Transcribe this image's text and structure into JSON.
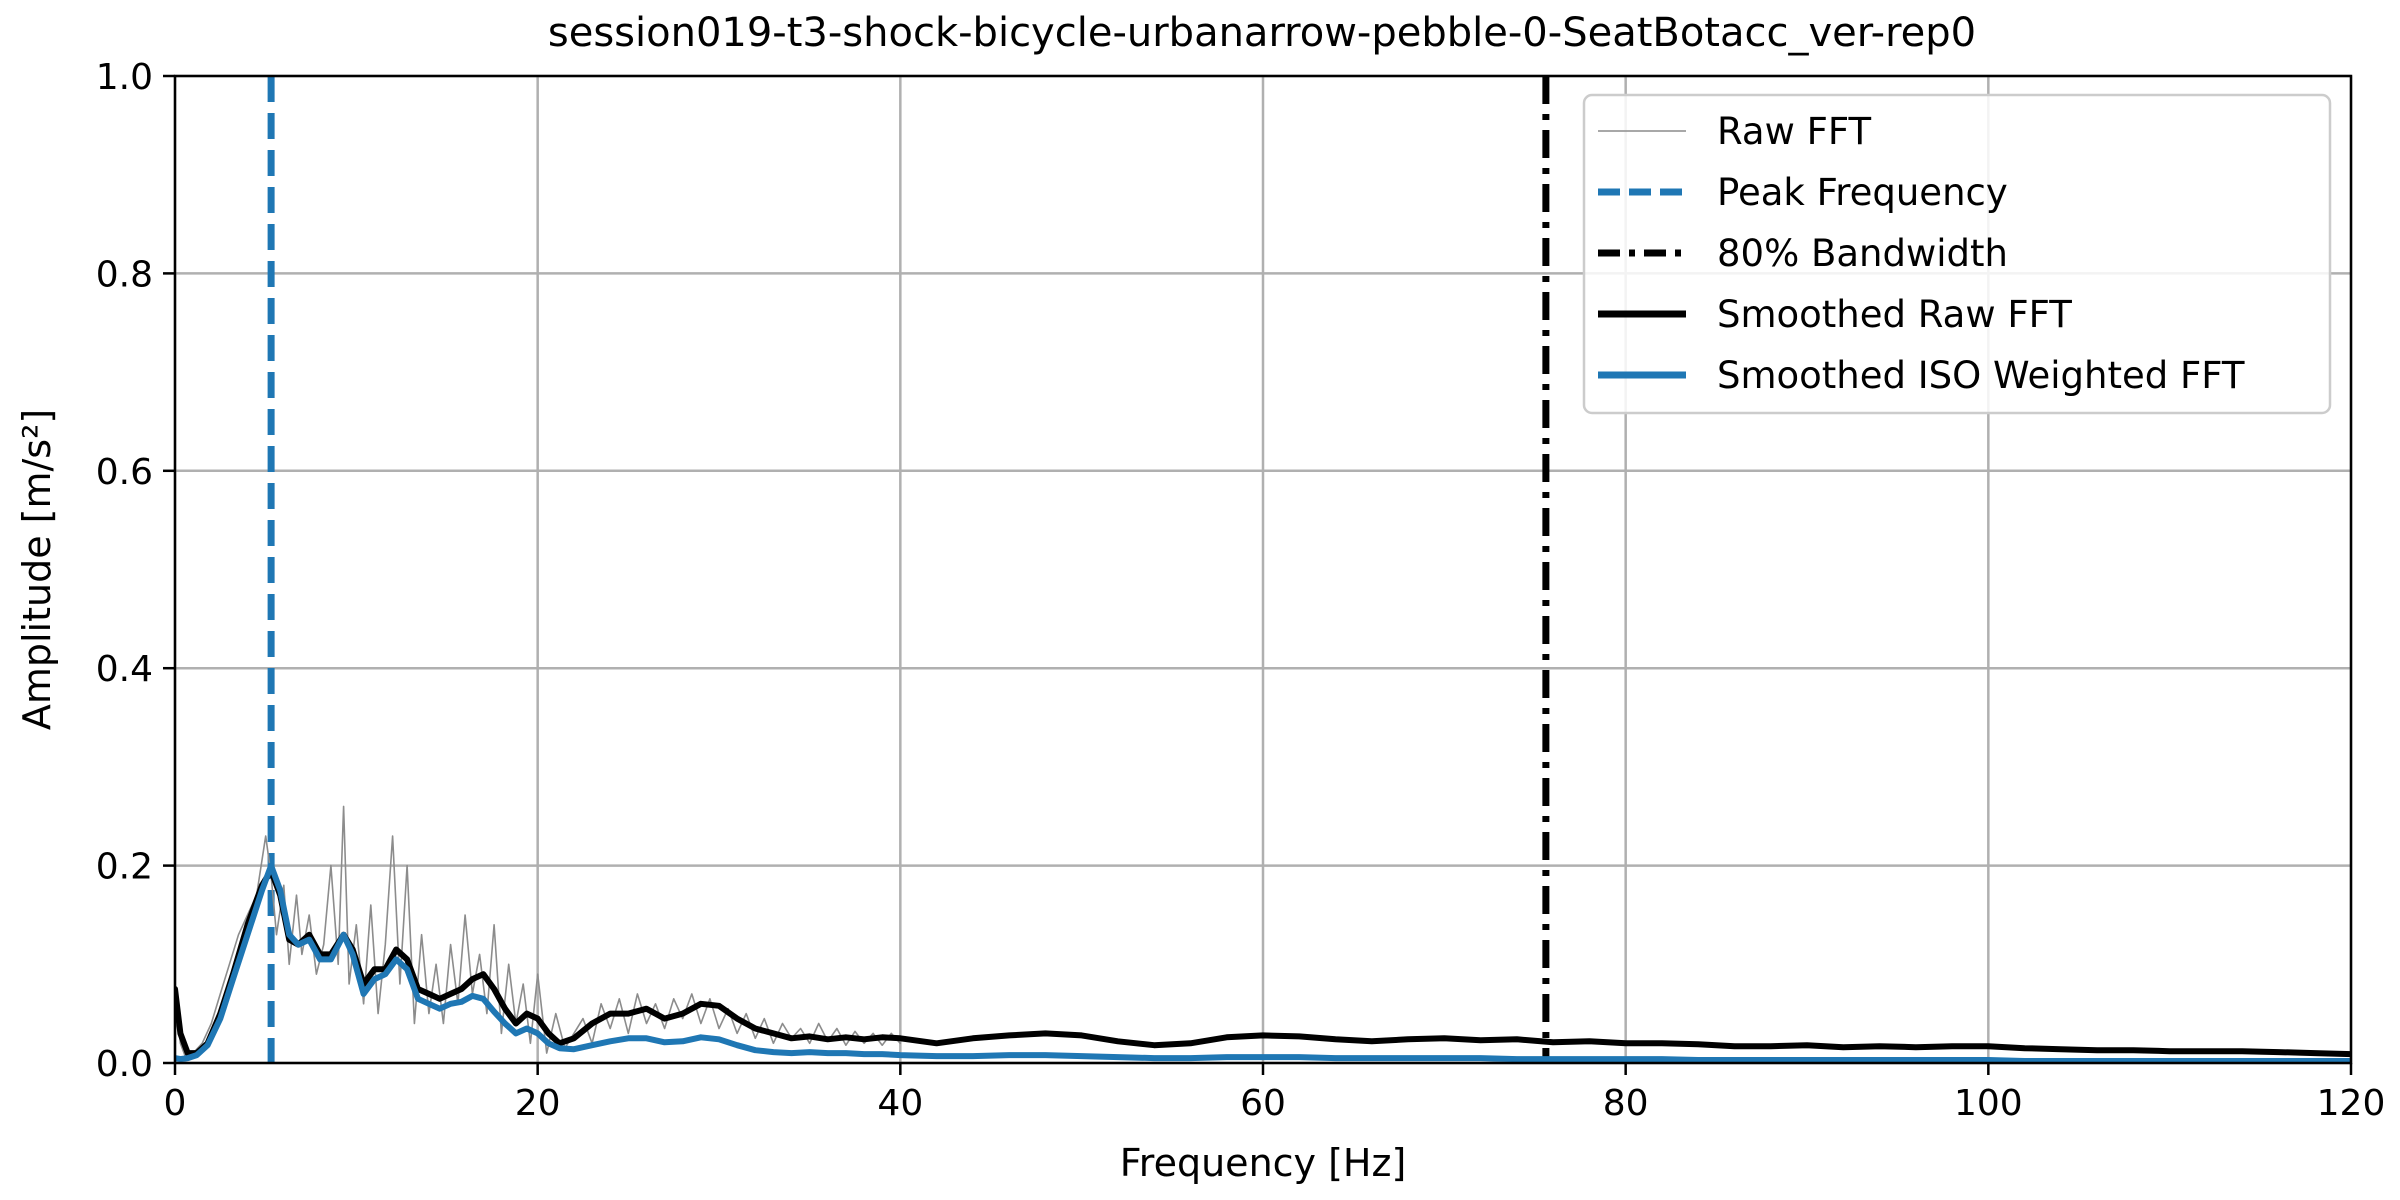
{
  "chart_data": {
    "type": "line",
    "title": "session019-t3-shock-bicycle-urbanarrow-pebble-0-SeatBotacc_ver-rep0",
    "xlabel": "Frequency [Hz]",
    "ylabel": "Amplitude [m/s²]",
    "xlim": [
      0,
      120
    ],
    "ylim": [
      0,
      1.0
    ],
    "xticks": [
      "0",
      "20",
      "40",
      "60",
      "80",
      "100",
      "120"
    ],
    "yticks": [
      "0.0",
      "0.2",
      "0.4",
      "0.6",
      "0.8",
      "1.0"
    ],
    "grid": true,
    "legend_position": "top-right",
    "legend": [
      "Raw FFT",
      "Peak Frequency",
      "80% Bandwidth",
      "Smoothed Raw FFT",
      "Smoothed ISO Weighted FFT"
    ],
    "peak_frequency_hz": 5.3,
    "bandwidth_80_hz": 75.6,
    "series": [
      {
        "name": "Raw FFT",
        "color": "#8c8c8c",
        "x": [
          0,
          0.3,
          0.6,
          1.0,
          1.5,
          2.0,
          2.5,
          3.0,
          3.5,
          4.0,
          4.5,
          5.0,
          5.3,
          5.6,
          6.0,
          6.3,
          6.7,
          7.0,
          7.4,
          7.8,
          8.2,
          8.6,
          9.0,
          9.3,
          9.6,
          10.0,
          10.4,
          10.8,
          11.2,
          11.6,
          12.0,
          12.4,
          12.8,
          13.2,
          13.6,
          14.0,
          14.4,
          14.8,
          15.2,
          15.6,
          16.0,
          16.4,
          16.8,
          17.2,
          17.6,
          18.0,
          18.4,
          18.8,
          19.2,
          19.6,
          20.0,
          20.5,
          21.0,
          21.5,
          22.0,
          22.5,
          23.0,
          23.5,
          24.0,
          24.5,
          25.0,
          25.5,
          26.0,
          26.5,
          27.0,
          27.5,
          28.0,
          28.5,
          29.0,
          29.5,
          30.0,
          30.5,
          31.0,
          31.5,
          32.0,
          32.5,
          33.0,
          33.5,
          34.0,
          34.5,
          35.0,
          35.5,
          36.0,
          36.5,
          37.0,
          37.5,
          38.0,
          38.5,
          39.0,
          39.5,
          40.0
        ],
        "y": [
          0.07,
          0.02,
          0.005,
          0.01,
          0.02,
          0.04,
          0.07,
          0.1,
          0.13,
          0.15,
          0.17,
          0.23,
          0.19,
          0.13,
          0.18,
          0.1,
          0.17,
          0.11,
          0.15,
          0.09,
          0.12,
          0.2,
          0.1,
          0.26,
          0.08,
          0.14,
          0.06,
          0.16,
          0.05,
          0.12,
          0.23,
          0.08,
          0.2,
          0.04,
          0.13,
          0.05,
          0.1,
          0.04,
          0.12,
          0.06,
          0.15,
          0.07,
          0.11,
          0.05,
          0.14,
          0.03,
          0.1,
          0.04,
          0.08,
          0.02,
          0.09,
          0.01,
          0.05,
          0.015,
          0.03,
          0.045,
          0.02,
          0.06,
          0.035,
          0.065,
          0.03,
          0.07,
          0.04,
          0.06,
          0.035,
          0.065,
          0.045,
          0.07,
          0.04,
          0.065,
          0.035,
          0.055,
          0.03,
          0.05,
          0.025,
          0.045,
          0.02,
          0.04,
          0.025,
          0.035,
          0.02,
          0.04,
          0.022,
          0.035,
          0.018,
          0.032,
          0.02,
          0.03,
          0.018,
          0.03,
          0.02
        ]
      },
      {
        "name": "Smoothed Raw FFT",
        "color": "#000000",
        "x": [
          0,
          0.3,
          0.7,
          1.2,
          1.8,
          2.5,
          3.2,
          4.0,
          4.8,
          5.3,
          5.8,
          6.3,
          6.8,
          7.4,
          8.0,
          8.6,
          9.3,
          9.8,
          10.4,
          11.0,
          11.6,
          12.2,
          12.8,
          13.4,
          14.0,
          14.6,
          15.2,
          15.8,
          16.4,
          17.0,
          17.6,
          18.2,
          18.8,
          19.4,
          20.0,
          20.6,
          21.2,
          22.0,
          23.0,
          24.0,
          25.0,
          26.0,
          27.0,
          28.0,
          29.0,
          30.0,
          31.0,
          32.0,
          33.0,
          34.0,
          35.0,
          36.0,
          37.0,
          38.0,
          39.0,
          40.0,
          42.0,
          44.0,
          46.0,
          48.0,
          50.0,
          52.0,
          54.0,
          56.0,
          58.0,
          60.0,
          62.0,
          64.0,
          66.0,
          68.0,
          70.0,
          72.0,
          74.0,
          76.0,
          78.0,
          80.0,
          82.0,
          84.0,
          86.0,
          88.0,
          90.0,
          92.0,
          94.0,
          96.0,
          98.0,
          100.0,
          102.0,
          104.0,
          106.0,
          108.0,
          110.0,
          112.0,
          114.0,
          116.0,
          118.0,
          120.0
        ],
        "y": [
          0.075,
          0.03,
          0.01,
          0.01,
          0.02,
          0.05,
          0.09,
          0.14,
          0.18,
          0.195,
          0.17,
          0.125,
          0.12,
          0.13,
          0.11,
          0.11,
          0.13,
          0.115,
          0.08,
          0.095,
          0.095,
          0.115,
          0.105,
          0.075,
          0.07,
          0.065,
          0.07,
          0.075,
          0.085,
          0.09,
          0.075,
          0.055,
          0.04,
          0.05,
          0.045,
          0.03,
          0.02,
          0.025,
          0.04,
          0.05,
          0.05,
          0.055,
          0.045,
          0.05,
          0.06,
          0.058,
          0.045,
          0.035,
          0.03,
          0.025,
          0.027,
          0.024,
          0.026,
          0.024,
          0.026,
          0.025,
          0.02,
          0.025,
          0.028,
          0.03,
          0.028,
          0.022,
          0.018,
          0.02,
          0.026,
          0.028,
          0.027,
          0.024,
          0.022,
          0.024,
          0.025,
          0.023,
          0.024,
          0.021,
          0.022,
          0.02,
          0.02,
          0.019,
          0.017,
          0.017,
          0.018,
          0.016,
          0.017,
          0.016,
          0.017,
          0.017,
          0.015,
          0.014,
          0.013,
          0.013,
          0.012,
          0.012,
          0.012,
          0.011,
          0.01,
          0.009
        ]
      },
      {
        "name": "Smoothed ISO Weighted FFT",
        "color": "#1f77b4",
        "x": [
          0,
          0.3,
          0.7,
          1.2,
          1.8,
          2.5,
          3.2,
          4.0,
          4.8,
          5.3,
          5.8,
          6.3,
          6.8,
          7.4,
          8.0,
          8.6,
          9.3,
          9.8,
          10.4,
          11.0,
          11.6,
          12.2,
          12.8,
          13.4,
          14.0,
          14.6,
          15.2,
          15.8,
          16.4,
          17.0,
          17.6,
          18.2,
          18.8,
          19.4,
          20.0,
          20.6,
          21.2,
          22.0,
          23.0,
          24.0,
          25.0,
          26.0,
          27.0,
          28.0,
          29.0,
          30.0,
          31.0,
          32.0,
          33.0,
          34.0,
          35.0,
          36.0,
          37.0,
          38.0,
          39.0,
          40.0,
          42.0,
          44.0,
          46.0,
          48.0,
          50.0,
          52.0,
          54.0,
          56.0,
          58.0,
          60.0,
          62.0,
          64.0,
          66.0,
          68.0,
          70.0,
          72.0,
          74.0,
          76.0,
          78.0,
          80.0,
          82.0,
          84.0,
          86.0,
          88.0,
          90.0,
          92.0,
          94.0,
          96.0,
          98.0,
          100.0,
          102.0,
          104.0,
          106.0,
          108.0,
          110.0,
          112.0,
          114.0,
          116.0,
          118.0,
          120.0
        ],
        "y": [
          0.005,
          0.004,
          0.005,
          0.008,
          0.018,
          0.045,
          0.085,
          0.13,
          0.175,
          0.2,
          0.175,
          0.13,
          0.12,
          0.125,
          0.105,
          0.105,
          0.13,
          0.11,
          0.07,
          0.085,
          0.09,
          0.105,
          0.095,
          0.065,
          0.06,
          0.055,
          0.06,
          0.062,
          0.068,
          0.065,
          0.052,
          0.04,
          0.03,
          0.035,
          0.03,
          0.02,
          0.015,
          0.014,
          0.018,
          0.022,
          0.025,
          0.025,
          0.021,
          0.022,
          0.026,
          0.024,
          0.018,
          0.013,
          0.011,
          0.01,
          0.011,
          0.01,
          0.01,
          0.009,
          0.009,
          0.008,
          0.007,
          0.007,
          0.008,
          0.008,
          0.007,
          0.006,
          0.005,
          0.005,
          0.006,
          0.006,
          0.006,
          0.005,
          0.005,
          0.005,
          0.005,
          0.005,
          0.004,
          0.004,
          0.004,
          0.004,
          0.004,
          0.003,
          0.003,
          0.003,
          0.003,
          0.003,
          0.003,
          0.003,
          0.003,
          0.003,
          0.002,
          0.002,
          0.002,
          0.002,
          0.002,
          0.002,
          0.002,
          0.002,
          0.002,
          0.002
        ]
      }
    ]
  }
}
